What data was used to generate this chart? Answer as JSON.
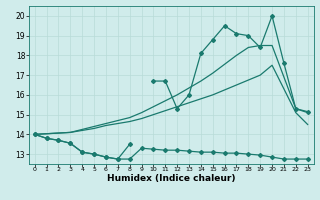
{
  "xlabel": "Humidex (Indice chaleur)",
  "bg_color": "#d0eceb",
  "grid_color": "#b8dbd8",
  "line_color": "#1a7a6e",
  "xlim": [
    -0.5,
    23.5
  ],
  "ylim": [
    12.5,
    20.5
  ],
  "xticks": [
    0,
    1,
    2,
    3,
    4,
    5,
    6,
    7,
    8,
    9,
    10,
    11,
    12,
    13,
    14,
    15,
    16,
    17,
    18,
    19,
    20,
    21,
    22,
    23
  ],
  "yticks": [
    13,
    14,
    15,
    16,
    17,
    18,
    19,
    20
  ],
  "line_bottom_x": [
    0,
    1,
    2,
    3,
    4,
    5,
    6,
    7,
    8,
    9,
    10,
    11,
    12,
    13,
    14,
    15,
    16,
    17,
    18,
    19,
    20,
    21,
    22,
    23
  ],
  "line_bottom_y": [
    14.0,
    13.8,
    13.7,
    13.55,
    13.1,
    13.0,
    12.85,
    12.75,
    12.75,
    13.3,
    13.25,
    13.2,
    13.2,
    13.15,
    13.1,
    13.1,
    13.05,
    13.05,
    13.0,
    12.95,
    12.85,
    12.75,
    12.75,
    12.75
  ],
  "line_trend1_x": [
    0,
    3,
    4,
    5,
    6,
    7,
    8,
    9,
    10,
    11,
    12,
    13,
    14,
    15,
    16,
    17,
    18,
    19,
    20,
    22,
    23
  ],
  "line_trend1_y": [
    14.0,
    14.1,
    14.2,
    14.3,
    14.45,
    14.55,
    14.65,
    14.8,
    15.0,
    15.2,
    15.4,
    15.6,
    15.8,
    16.0,
    16.25,
    16.5,
    16.75,
    17.0,
    17.5,
    15.1,
    14.5
  ],
  "line_trend2_x": [
    0,
    3,
    4,
    5,
    6,
    7,
    8,
    9,
    10,
    11,
    12,
    13,
    14,
    15,
    16,
    17,
    18,
    19,
    20,
    22,
    23
  ],
  "line_trend2_y": [
    14.0,
    14.1,
    14.25,
    14.4,
    14.55,
    14.7,
    14.85,
    15.1,
    15.4,
    15.7,
    16.0,
    16.35,
    16.7,
    17.1,
    17.55,
    18.0,
    18.4,
    18.5,
    18.5,
    15.3,
    15.1
  ],
  "line_spike_x": [
    0,
    1,
    2,
    3,
    4,
    5,
    6,
    7,
    8,
    9,
    10,
    11,
    12,
    13,
    14,
    15,
    16,
    17,
    18,
    19,
    20,
    21,
    22,
    23
  ],
  "line_spike_y": [
    14.0,
    13.8,
    13.7,
    13.55,
    13.1,
    13.0,
    12.85,
    12.75,
    13.5,
    null,
    16.7,
    16.7,
    15.3,
    16.0,
    18.1,
    18.8,
    19.5,
    19.1,
    19.0,
    18.4,
    20.0,
    17.6,
    15.3,
    15.15
  ]
}
